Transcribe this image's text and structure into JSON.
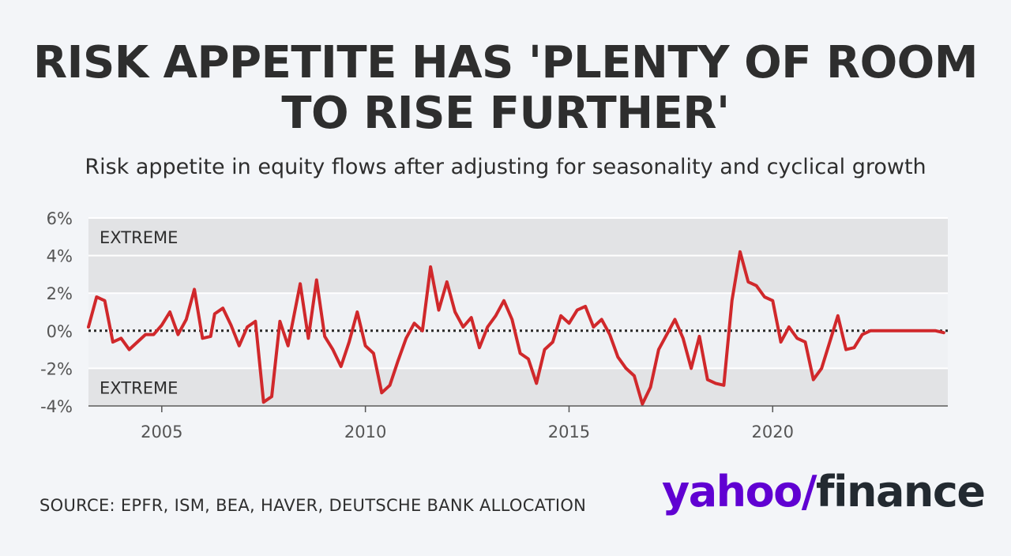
{
  "title": "RISK APPETITE HAS 'PLENTY OF ROOM TO RISE FURTHER'",
  "subtitle": "Risk appetite in equity flows after adjusting for seasonality and cyclical growth",
  "source": "SOURCE: EPFR, ISM, BEA, HAVER, DEUTSCHE BANK ALLOCATION",
  "brand": {
    "part1": "yahoo",
    "slash": "/",
    "part2": "finance"
  },
  "colors": {
    "line": "#d0282b",
    "band": "#e2e3e5",
    "plot_bg": "#eff1f4",
    "brand": "#6001d2"
  },
  "chart_data": {
    "type": "line",
    "title": "",
    "xlabel": "",
    "ylabel": "",
    "xlim": [
      2003.2,
      2024.3
    ],
    "ylim": [
      -4,
      6
    ],
    "y_ticks": [
      6,
      4,
      2,
      0,
      -2,
      -4
    ],
    "y_tick_labels": [
      "6%",
      "4%",
      "2%",
      "0%",
      "-2%",
      "-4%"
    ],
    "x_ticks": [
      2005,
      2010,
      2015,
      2020
    ],
    "x_tick_labels": [
      "2005",
      "2010",
      "2015",
      "2020"
    ],
    "bands": [
      {
        "label": "EXTREME",
        "from": 2,
        "to": 6
      },
      {
        "label": "EXTREME",
        "from": -4,
        "to": -2
      }
    ],
    "reference_line": {
      "y": 0,
      "style": "dotted"
    },
    "grid": true,
    "series": [
      {
        "x": [
          2003.2,
          2003.4,
          2003.6,
          2003.8,
          2004.0,
          2004.2,
          2004.4,
          2004.6,
          2004.8,
          2005.0,
          2005.2,
          2005.4,
          2005.6,
          2005.8,
          2006.0,
          2006.2,
          2006.3,
          2006.5,
          2006.7,
          2006.9,
          2007.1,
          2007.3,
          2007.5,
          2007.7,
          2007.9,
          2008.1,
          2008.2,
          2008.4,
          2008.6,
          2008.8,
          2009.0,
          2009.2,
          2009.4,
          2009.6,
          2009.8,
          2010.0,
          2010.2,
          2010.4,
          2010.6,
          2010.8,
          2011.0,
          2011.2,
          2011.4,
          2011.6,
          2011.8,
          2012.0,
          2012.2,
          2012.4,
          2012.6,
          2012.8,
          2013.0,
          2013.2,
          2013.4,
          2013.6,
          2013.8,
          2014.0,
          2014.2,
          2014.4,
          2014.6,
          2014.8,
          2015.0,
          2015.2,
          2015.4,
          2015.6,
          2015.8,
          2016.0,
          2016.2,
          2016.4,
          2016.6,
          2016.8,
          2017.0,
          2017.2,
          2017.4,
          2017.6,
          2017.8,
          2018.0,
          2018.2,
          2018.4,
          2018.6,
          2018.8,
          2019.0,
          2019.2,
          2019.4,
          2019.6,
          2019.8,
          2020.0,
          2020.2,
          2020.4,
          2020.6,
          2020.8,
          2021.0,
          2021.2,
          2021.4,
          2021.6,
          2021.8,
          2022.0,
          2022.2,
          2022.4,
          2022.6,
          2022.8,
          2023.0,
          2023.2,
          2023.4,
          2023.6,
          2023.8,
          2024.0,
          2024.2
        ],
        "y": [
          0.2,
          1.8,
          1.6,
          -0.6,
          -0.4,
          -1.0,
          -0.6,
          -0.2,
          -0.2,
          0.3,
          1.0,
          -0.2,
          0.6,
          2.2,
          -0.4,
          -0.3,
          0.9,
          1.2,
          0.3,
          -0.8,
          0.2,
          0.5,
          -3.8,
          -3.5,
          0.5,
          -0.8,
          0.3,
          2.5,
          -0.4,
          2.7,
          -0.3,
          -1.0,
          -1.9,
          -0.6,
          1.0,
          -0.8,
          -1.2,
          -3.3,
          -2.9,
          -1.6,
          -0.4,
          0.4,
          0.0,
          3.4,
          1.1,
          2.6,
          1.0,
          0.2,
          0.7,
          -0.9,
          0.2,
          0.8,
          1.6,
          0.6,
          -1.2,
          -1.5,
          -2.8,
          -1.0,
          -0.6,
          0.8,
          0.4,
          1.1,
          1.3,
          0.2,
          0.6,
          -0.2,
          -1.4,
          -2.0,
          -2.4,
          -3.9,
          -3.0,
          -1.0,
          -0.2,
          0.6,
          -0.4,
          -2.0,
          -0.3,
          -2.6,
          -2.8,
          -2.9,
          1.6,
          4.2,
          2.6,
          2.4,
          1.8,
          1.6,
          -0.6,
          0.2,
          -0.4,
          -0.6,
          -2.6,
          -2.0,
          -0.6,
          0.8,
          -1.0,
          -0.9,
          -0.2,
          0.0,
          0.0,
          0.0,
          0.0,
          0.0,
          0.0,
          0.0,
          0.0,
          0.0,
          -0.1
        ]
      }
    ]
  }
}
